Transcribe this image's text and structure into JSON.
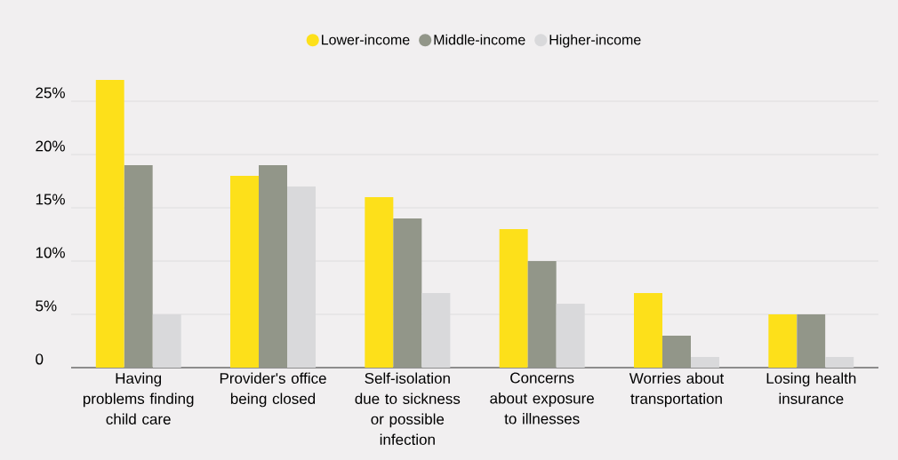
{
  "chart_data": {
    "type": "bar",
    "categories": [
      "Having problems finding child care",
      "Provider's office being closed",
      "Self-isolation due to sickness or possible infection",
      "Concerns about exposure to illnesses",
      "Worries about transportation",
      "Losing health insurance"
    ],
    "series": [
      {
        "name": "Lower-income",
        "color": "#fde01a",
        "values": [
          27,
          18,
          16,
          13,
          7,
          5
        ]
      },
      {
        "name": "Middle-income",
        "color": "#929689",
        "values": [
          19,
          19,
          14,
          10,
          3,
          5
        ]
      },
      {
        "name": "Higher-income",
        "color": "#d9d9db",
        "values": [
          5,
          17,
          7,
          6,
          1,
          1
        ]
      }
    ],
    "ylim": [
      0,
      27
    ],
    "yticks": [
      0,
      {
        "value": 5,
        "label": "5%"
      },
      {
        "value": 10,
        "label": "10%"
      },
      {
        "value": 15,
        "label": "15%"
      },
      {
        "value": 20,
        "label": "20%"
      },
      {
        "value": 25,
        "label": "25%"
      }
    ],
    "grid": "y",
    "legend": "top",
    "marker": "circle"
  }
}
